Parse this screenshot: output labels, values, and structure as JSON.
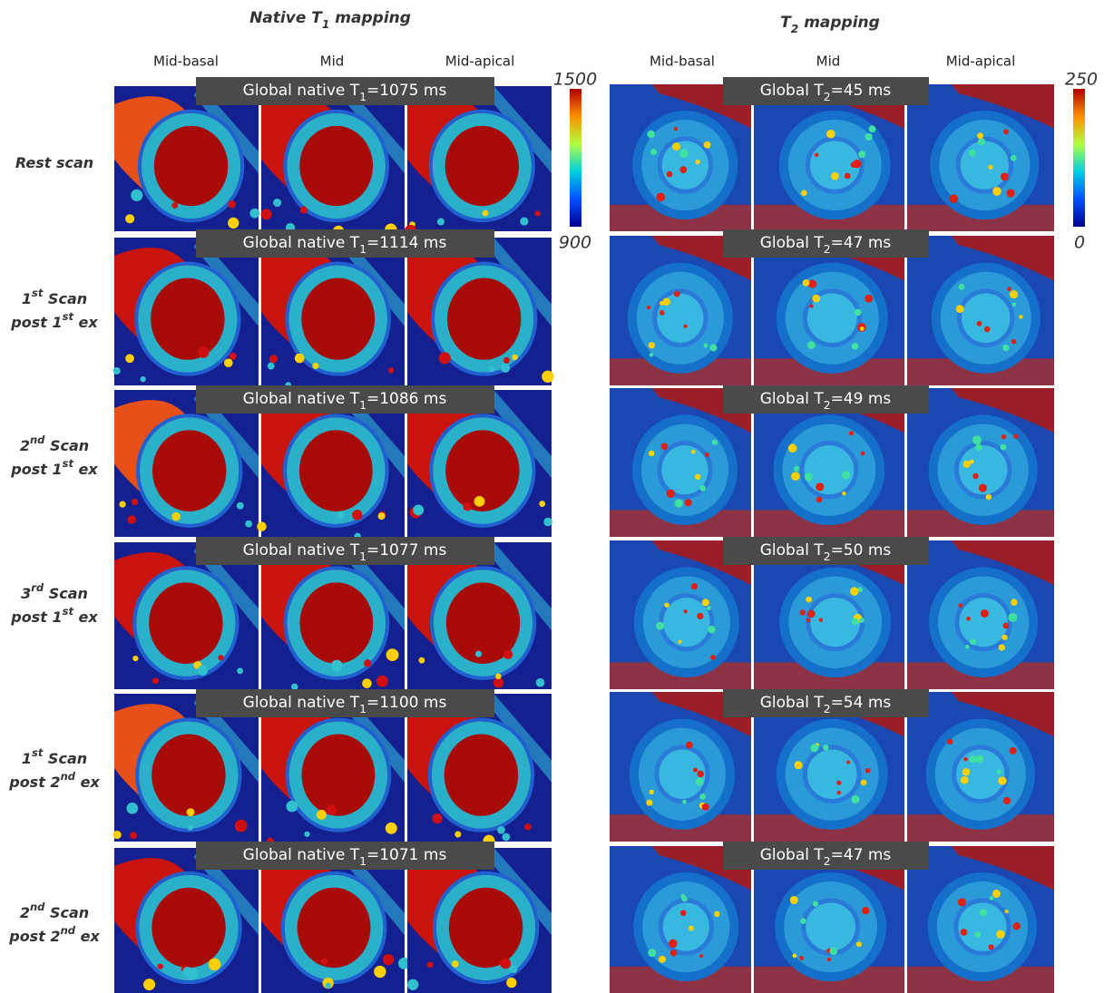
{
  "rows": [
    [
      [
        {
          "t": "Rest scan"
        }
      ]
    ],
    [
      [
        {
          "t": "1"
        },
        {
          "sup": "st"
        },
        {
          "t": " Scan"
        }
      ],
      [
        {
          "t": "post 1"
        },
        {
          "sup": "st"
        },
        {
          "t": " ex"
        }
      ]
    ],
    [
      [
        {
          "t": "2"
        },
        {
          "sup": "nd"
        },
        {
          "t": " Scan"
        }
      ],
      [
        {
          "t": "post 1"
        },
        {
          "sup": "st"
        },
        {
          "t": " ex"
        }
      ]
    ],
    [
      [
        {
          "t": "3"
        },
        {
          "sup": "rd"
        },
        {
          "t": " Scan"
        }
      ],
      [
        {
          "t": "post 1"
        },
        {
          "sup": "st"
        },
        {
          "t": " ex"
        }
      ]
    ],
    [
      [
        {
          "t": "1"
        },
        {
          "sup": "st"
        },
        {
          "t": " Scan"
        }
      ],
      [
        {
          "t": "post 2"
        },
        {
          "sup": "nd"
        },
        {
          "t": " ex"
        }
      ]
    ],
    [
      [
        {
          "t": "2"
        },
        {
          "sup": "nd"
        },
        {
          "t": " Scan"
        }
      ],
      [
        {
          "t": "post 2"
        },
        {
          "sup": "nd"
        },
        {
          "t": " ex"
        }
      ]
    ]
  ],
  "t1": {
    "title": [
      {
        "t": "Native T"
      },
      {
        "sub": "1"
      },
      {
        "t": " mapping"
      }
    ],
    "columns": [
      "Mid-basal",
      "Mid",
      "Mid-apical"
    ],
    "scale": {
      "max": "1500",
      "min": "900"
    },
    "globals": [
      [
        {
          "t": "Global native T"
        },
        {
          "sub": "1"
        },
        {
          "t": "=1075 ms"
        }
      ],
      [
        {
          "t": "Global native T"
        },
        {
          "sub": "1"
        },
        {
          "t": "=1114 ms"
        }
      ],
      [
        {
          "t": "Global native T"
        },
        {
          "sub": "1"
        },
        {
          "t": "=1086 ms"
        }
      ],
      [
        {
          "t": "Global native T"
        },
        {
          "sub": "1"
        },
        {
          "t": "=1077 ms"
        }
      ],
      [
        {
          "t": "Global native T"
        },
        {
          "sub": "1"
        },
        {
          "t": "=1100 ms"
        }
      ],
      [
        {
          "t": "Global native T"
        },
        {
          "sub": "1"
        },
        {
          "t": "=1071 ms"
        }
      ]
    ]
  },
  "t2": {
    "title": [
      {
        "t": "T"
      },
      {
        "sub": "2"
      },
      {
        "t": " mapping"
      }
    ],
    "columns": [
      "Mid-basal",
      "Mid",
      "Mid-apical"
    ],
    "scale": {
      "max": "250",
      "min": "0"
    },
    "globals": [
      [
        {
          "t": "Global T"
        },
        {
          "sub": "2"
        },
        {
          "t": "=45 ms"
        }
      ],
      [
        {
          "t": "Global T"
        },
        {
          "sub": "2"
        },
        {
          "t": "=47 ms"
        }
      ],
      [
        {
          "t": "Global T"
        },
        {
          "sub": "2"
        },
        {
          "t": "=49 ms"
        }
      ],
      [
        {
          "t": "Global T"
        },
        {
          "sub": "2"
        },
        {
          "t": "=50 ms"
        }
      ],
      [
        {
          "t": "Global T"
        },
        {
          "sub": "2"
        },
        {
          "t": "=54 ms"
        }
      ],
      [
        {
          "t": "Global T"
        },
        {
          "sub": "2"
        },
        {
          "t": "=47 ms"
        }
      ]
    ]
  }
}
